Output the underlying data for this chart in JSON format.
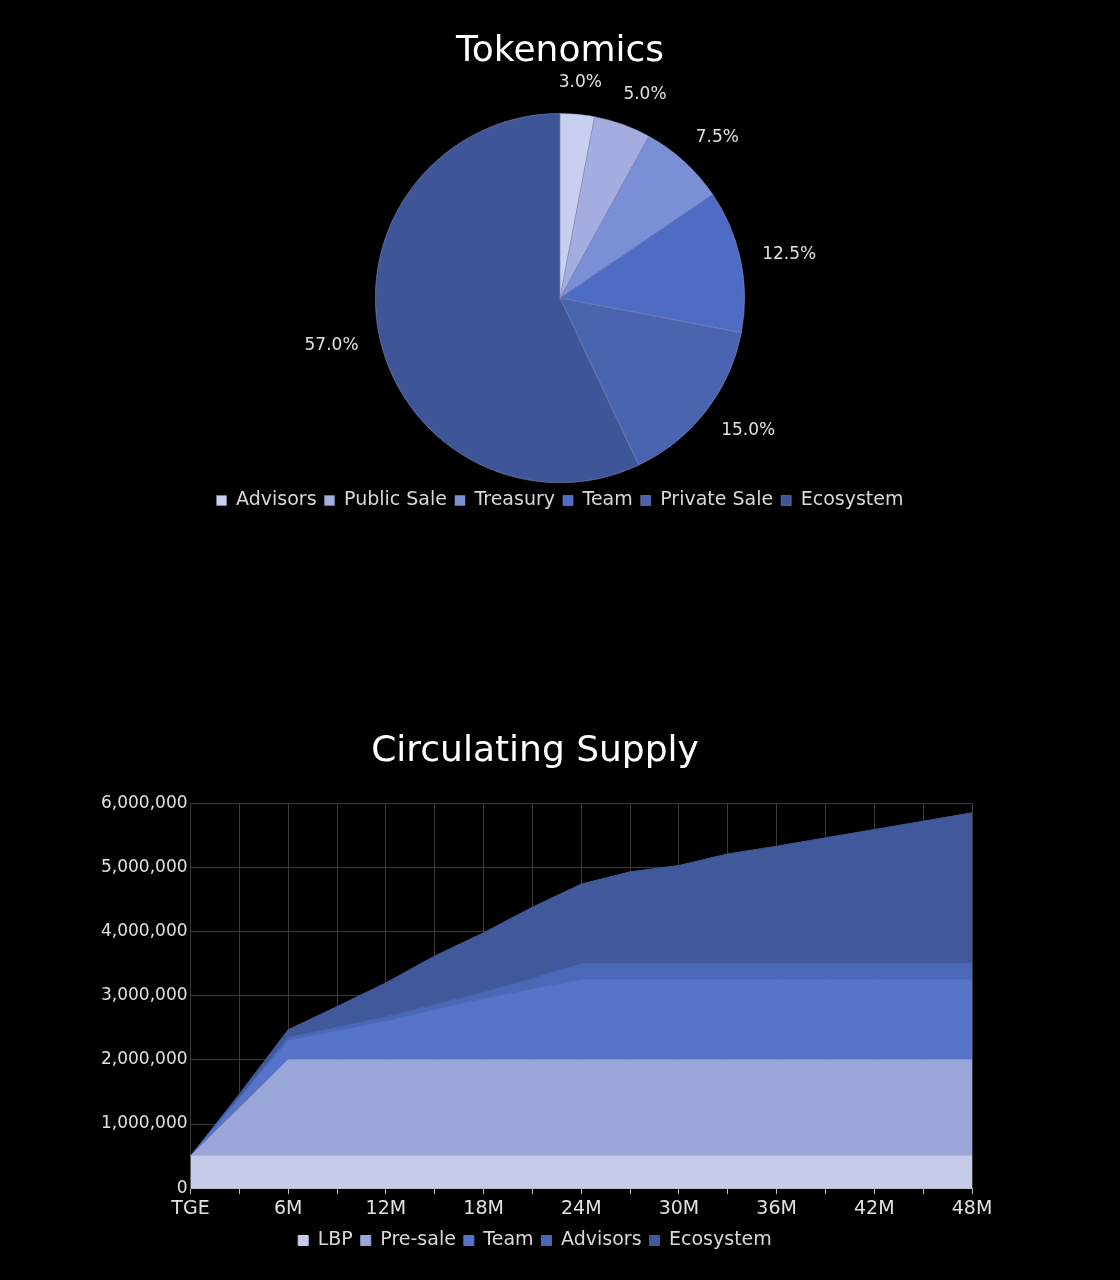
{
  "chart_data": [
    {
      "type": "pie",
      "title": "Tokenomics",
      "categories": [
        "Advisors",
        "Public Sale",
        "Treasury",
        "Team",
        "Private Sale",
        "Ecosystem"
      ],
      "values": [
        3,
        5,
        7.5,
        12.5,
        15,
        57
      ],
      "colors": [
        "#c9cfee",
        "#a3addf",
        "#7b8fd6",
        "#4f6cc4",
        "#4a64b0",
        "#3e5597"
      ],
      "value_labels": [
        "3.0%",
        "5.0%",
        "7.5%",
        "12.5%",
        "15.0%",
        "57.0%"
      ],
      "legend": "bottom"
    },
    {
      "type": "area",
      "title": "Circulating Supply",
      "stacked": true,
      "x": [
        0,
        3,
        6,
        9,
        12,
        15,
        18,
        21,
        24,
        27,
        30,
        33,
        36,
        39,
        42,
        45,
        48
      ],
      "series": [
        {
          "name": "LBP",
          "color": "#c5cbe8",
          "values": [
            500000,
            500000,
            500000,
            500000,
            500000,
            500000,
            500000,
            500000,
            500000,
            500000,
            500000,
            500000,
            500000,
            500000,
            500000,
            500000,
            500000
          ]
        },
        {
          "name": "Pre-sale",
          "color": "#9aa5d8",
          "values": [
            0,
            750000,
            1500000,
            1500000,
            1500000,
            1500000,
            1500000,
            1500000,
            1500000,
            1500000,
            1500000,
            1500000,
            1500000,
            1500000,
            1500000,
            1500000,
            1500000
          ]
        },
        {
          "name": "Team",
          "color": "#5675c8",
          "values": [
            0,
            150000,
            300000,
            450000,
            600000,
            780000,
            950000,
            1100000,
            1250000,
            1250000,
            1250000,
            1250000,
            1250000,
            1250000,
            1250000,
            1250000,
            1250000
          ]
        },
        {
          "name": "Advisors",
          "color": "#4a68b8",
          "values": [
            0,
            20000,
            50000,
            60000,
            70000,
            80000,
            100000,
            170000,
            250000,
            250000,
            250000,
            250000,
            250000,
            250000,
            250000,
            250000,
            250000
          ]
        },
        {
          "name": "Ecosystem",
          "color": "#41589a",
          "values": [
            0,
            50000,
            120000,
            320000,
            530000,
            760000,
            930000,
            1110000,
            1240000,
            1430000,
            1530000,
            1710000,
            1830000,
            1960000,
            2090000,
            2220000,
            2350000
          ]
        }
      ],
      "xlim": [
        0,
        48
      ],
      "xticks": [
        {
          "value": 0,
          "label": "TGE"
        },
        {
          "value": 3,
          "label": null
        },
        {
          "value": 6,
          "label": "6M"
        },
        {
          "value": 9,
          "label": null
        },
        {
          "value": 12,
          "label": "12M"
        },
        {
          "value": 15,
          "label": null
        },
        {
          "value": 18,
          "label": "18M"
        },
        {
          "value": 21,
          "label": null
        },
        {
          "value": 24,
          "label": "24M"
        },
        {
          "value": 27,
          "label": null
        },
        {
          "value": 30,
          "label": "30M"
        },
        {
          "value": 33,
          "label": null
        },
        {
          "value": 36,
          "label": "36M"
        },
        {
          "value": 39,
          "label": null
        },
        {
          "value": 42,
          "label": "42M"
        },
        {
          "value": 45,
          "label": null
        },
        {
          "value": 48,
          "label": "48M"
        }
      ],
      "ylim": [
        0,
        6000000
      ],
      "yticks": [
        0,
        {
          "value": 1000000,
          "label": "1,000,000"
        },
        {
          "value": 2000000,
          "label": "2,000,000"
        },
        {
          "value": 3000000,
          "label": "3,000,000"
        },
        {
          "value": 4000000,
          "label": "4,000,000"
        },
        {
          "value": 5000000,
          "label": "5,000,000"
        },
        {
          "value": 6000000,
          "label": "6,000,000"
        }
      ],
      "grid": true,
      "legend": "bottom"
    }
  ]
}
